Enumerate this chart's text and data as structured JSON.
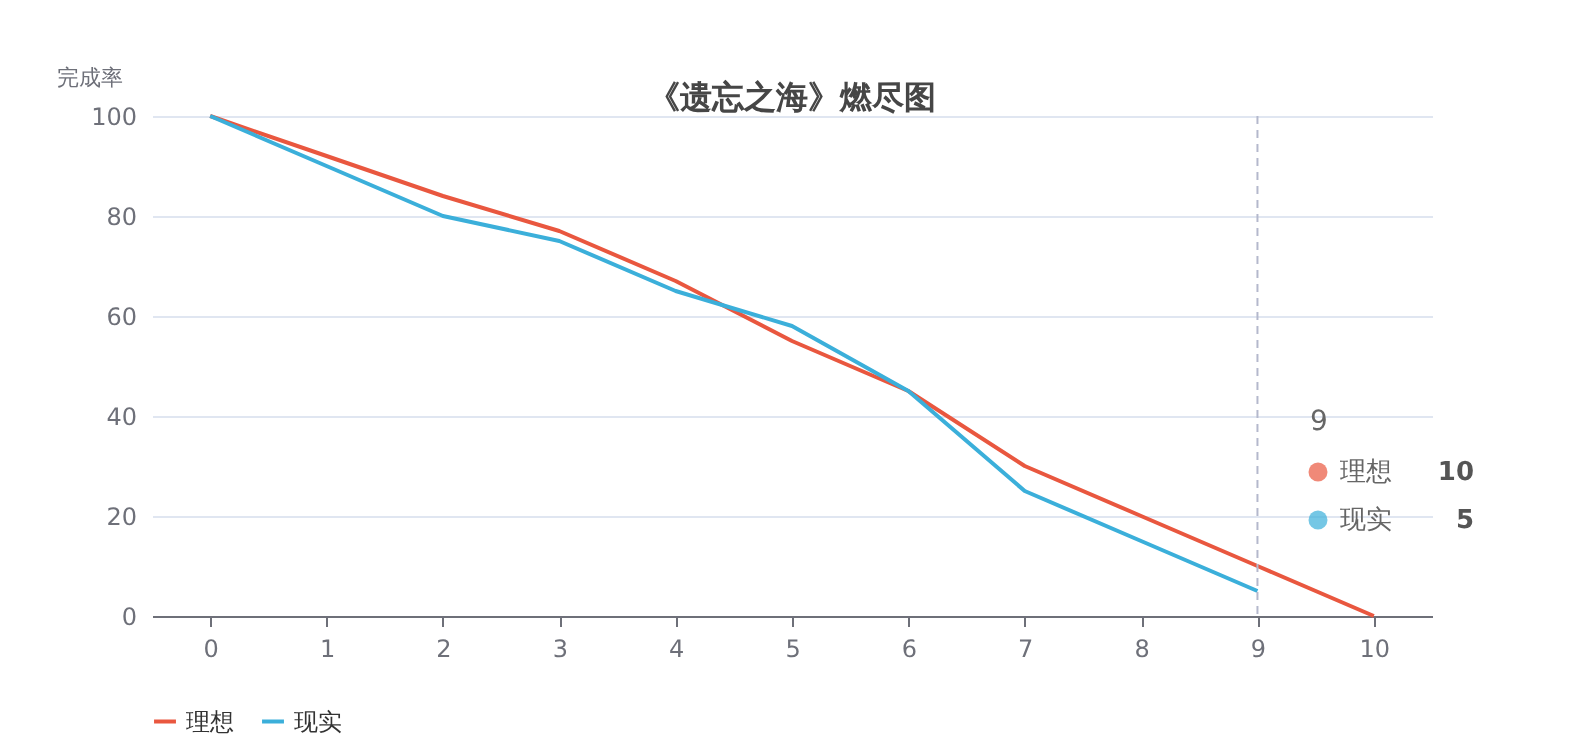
{
  "chart_data": {
    "type": "line",
    "title": "《遗忘之海》燃尽图",
    "ylabel": "完成率",
    "categories": [
      "0",
      "1",
      "2",
      "3",
      "4",
      "5",
      "6",
      "7",
      "8",
      "9",
      "10"
    ],
    "annotations": [
      "9",
      "10",
      "5"
    ],
    "series": [
      {
        "name": "理想",
        "color": "#e9573f",
        "values": [
          100,
          92,
          84,
          77,
          67,
          55,
          45,
          30,
          20,
          10,
          0
        ]
      },
      {
        "name": "现实",
        "color": "#3bafda",
        "values": [
          100,
          90,
          80,
          75,
          65,
          58,
          45,
          25,
          15,
          5,
          null
        ]
      }
    ],
    "ylim": [
      0,
      100
    ],
    "yticks": [
      0,
      20,
      40,
      60,
      80,
      100
    ],
    "grid": "y",
    "legend": "bottom",
    "ref_lines": [
      {
        "axis": "x",
        "value": "9",
        "line_style": "dashed",
        "color": "#b4b8cc"
      }
    ]
  }
}
